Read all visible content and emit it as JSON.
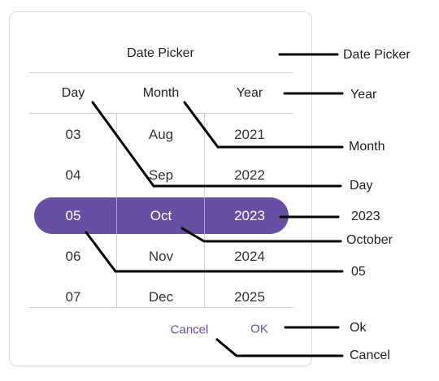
{
  "dialog": {
    "title": "Date Picker",
    "headers": {
      "day": "Day",
      "month": "Month",
      "year": "Year"
    },
    "columns": {
      "day": [
        "03",
        "04",
        "05",
        "06",
        "07"
      ],
      "month": [
        "Aug",
        "Sep",
        "Oct",
        "Nov",
        "Dec"
      ],
      "year": [
        "2021",
        "2022",
        "2023",
        "2024",
        "2025"
      ]
    },
    "selected_index": 2,
    "buttons": {
      "cancel": "Cancel",
      "ok": "OK"
    },
    "accent_color": "#6750a4"
  },
  "callouts": {
    "date_picker": "Date Picker",
    "year": "Year",
    "month": "Month",
    "day": "Day",
    "year_2023": "2023",
    "october": "October",
    "day_05": "05",
    "ok": "Ok",
    "cancel": "Cancel"
  }
}
